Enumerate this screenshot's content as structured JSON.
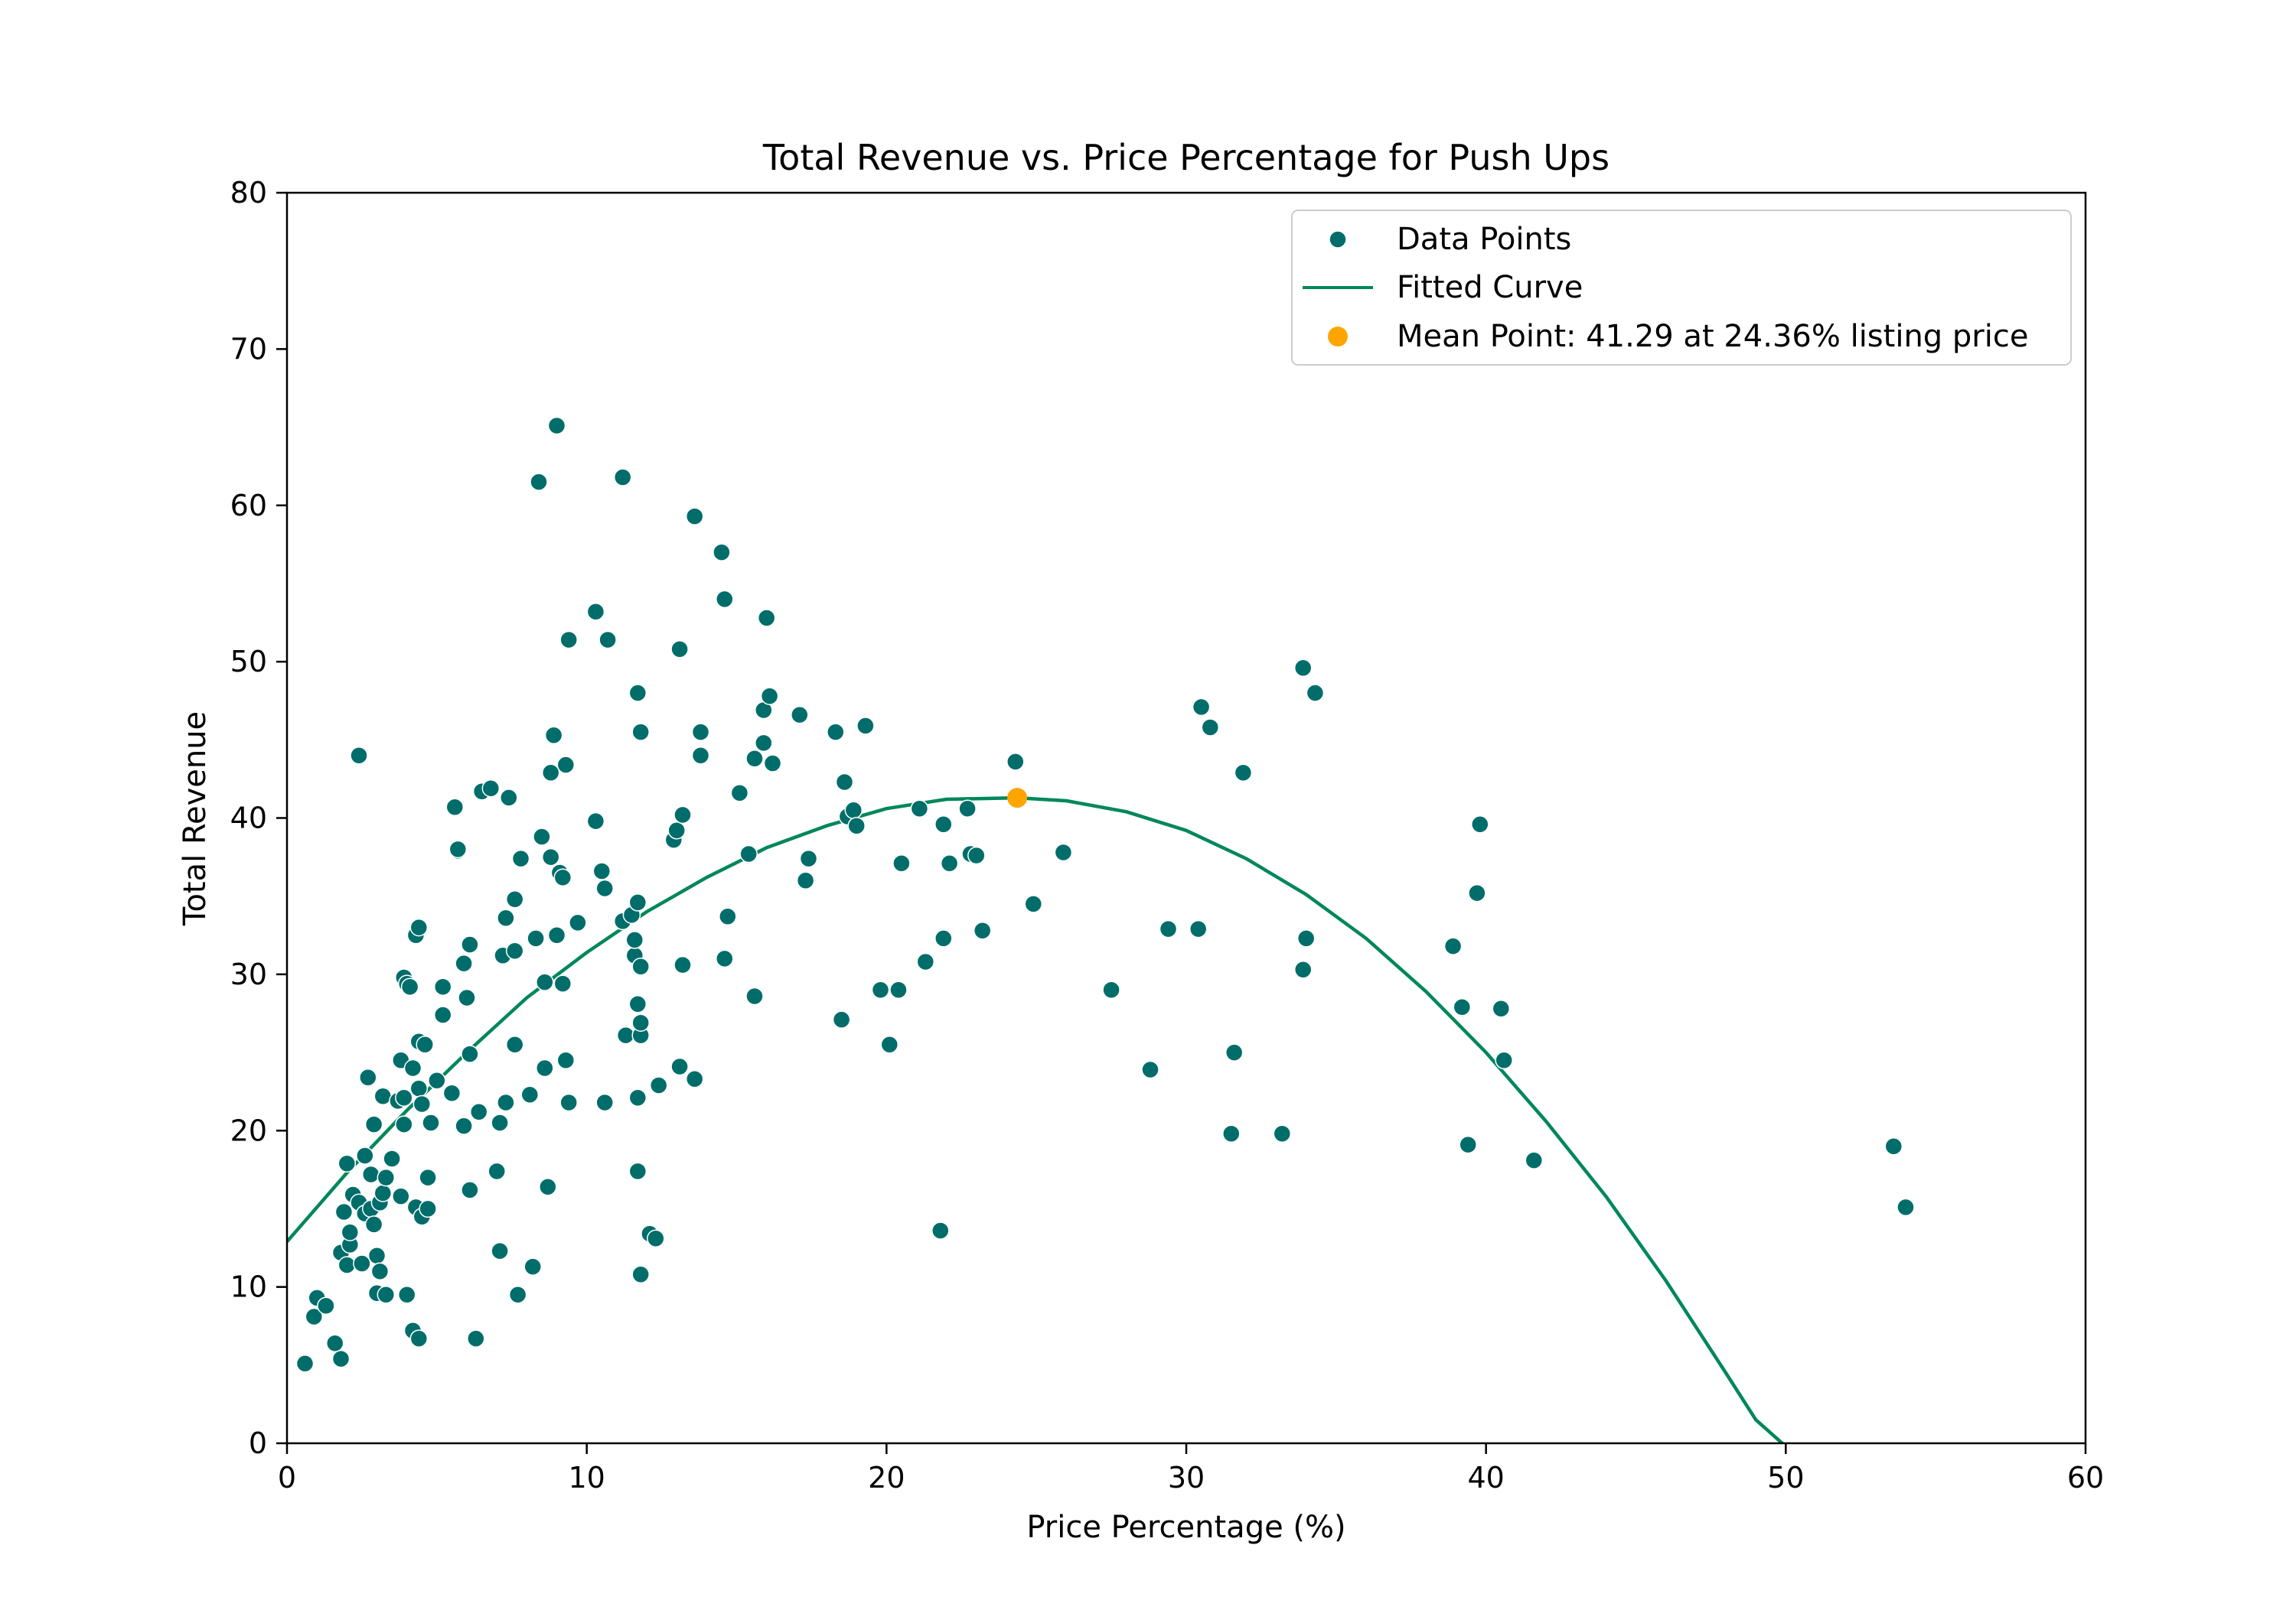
{
  "chart_data": {
    "type": "scatter",
    "title": "Total Revenue vs. Price Percentage for Push Ups",
    "xlabel": "Price Percentage (%)",
    "ylabel": "Total Revenue",
    "xlim": [
      0,
      60
    ],
    "ylim": [
      0,
      80
    ],
    "xticks": [
      0,
      10,
      20,
      30,
      40,
      50,
      60
    ],
    "yticks": [
      0,
      10,
      20,
      30,
      40,
      50,
      60,
      70,
      80
    ],
    "grid": false,
    "legend_position": "top-right",
    "colors": {
      "points": "#006d6a",
      "curve": "#00875a",
      "mean": "#ffa500",
      "frame": "#000000"
    },
    "series": [
      {
        "name": "Data Points",
        "kind": "scatter",
        "points": [
          [
            0.6,
            5.1
          ],
          [
            0.9,
            8.1
          ],
          [
            1.0,
            9.3
          ],
          [
            1.3,
            8.8
          ],
          [
            1.6,
            6.4
          ],
          [
            1.8,
            5.4
          ],
          [
            1.8,
            12.2
          ],
          [
            1.9,
            14.8
          ],
          [
            2.0,
            11.4
          ],
          [
            2.0,
            17.9
          ],
          [
            2.1,
            12.7
          ],
          [
            2.1,
            13.5
          ],
          [
            2.2,
            15.9
          ],
          [
            2.4,
            44.0
          ],
          [
            2.4,
            15.4
          ],
          [
            2.5,
            11.5
          ],
          [
            2.6,
            18.4
          ],
          [
            2.6,
            14.7
          ],
          [
            2.7,
            23.4
          ],
          [
            2.8,
            17.2
          ],
          [
            2.8,
            15.0
          ],
          [
            2.9,
            20.4
          ],
          [
            2.9,
            14.0
          ],
          [
            3.0,
            12.0
          ],
          [
            3.0,
            9.6
          ],
          [
            3.1,
            11.0
          ],
          [
            3.1,
            15.4
          ],
          [
            3.2,
            22.2
          ],
          [
            3.2,
            16.0
          ],
          [
            3.3,
            17.0
          ],
          [
            3.3,
            9.5
          ],
          [
            3.5,
            18.2
          ],
          [
            3.7,
            21.9
          ],
          [
            3.8,
            24.5
          ],
          [
            3.8,
            15.8
          ],
          [
            3.9,
            20.4
          ],
          [
            3.9,
            22.1
          ],
          [
            3.9,
            29.8
          ],
          [
            4.0,
            9.5
          ],
          [
            4.0,
            29.4
          ],
          [
            4.1,
            29.2
          ],
          [
            4.2,
            7.2
          ],
          [
            4.2,
            24.0
          ],
          [
            4.3,
            15.1
          ],
          [
            4.3,
            32.5
          ],
          [
            4.4,
            6.7
          ],
          [
            4.4,
            33.0
          ],
          [
            4.4,
            25.7
          ],
          [
            4.4,
            22.7
          ],
          [
            4.5,
            21.7
          ],
          [
            4.5,
            14.5
          ],
          [
            4.6,
            25.5
          ],
          [
            4.7,
            17.0
          ],
          [
            4.7,
            15.0
          ],
          [
            4.8,
            20.5
          ],
          [
            5.0,
            23.2
          ],
          [
            5.2,
            27.4
          ],
          [
            5.2,
            29.2
          ],
          [
            5.5,
            22.4
          ],
          [
            5.6,
            40.7
          ],
          [
            5.7,
            37.9
          ],
          [
            5.7,
            38.0
          ],
          [
            5.9,
            30.7
          ],
          [
            5.9,
            20.3
          ],
          [
            6.0,
            28.5
          ],
          [
            6.1,
            24.9
          ],
          [
            6.1,
            31.9
          ],
          [
            6.1,
            16.2
          ],
          [
            6.3,
            6.7
          ],
          [
            6.4,
            21.2
          ],
          [
            6.5,
            41.7
          ],
          [
            6.8,
            41.9
          ],
          [
            7.0,
            17.4
          ],
          [
            7.1,
            20.5
          ],
          [
            7.1,
            12.3
          ],
          [
            7.2,
            31.2
          ],
          [
            7.3,
            21.8
          ],
          [
            7.3,
            33.6
          ],
          [
            7.4,
            41.3
          ],
          [
            7.6,
            34.8
          ],
          [
            7.6,
            25.5
          ],
          [
            7.6,
            31.5
          ],
          [
            7.7,
            9.5
          ],
          [
            7.8,
            37.4
          ],
          [
            8.1,
            22.3
          ],
          [
            8.2,
            11.3
          ],
          [
            8.3,
            32.3
          ],
          [
            8.4,
            61.5
          ],
          [
            8.5,
            38.8
          ],
          [
            8.6,
            29.5
          ],
          [
            8.6,
            24.0
          ],
          [
            8.7,
            16.4
          ],
          [
            8.8,
            37.5
          ],
          [
            8.8,
            42.9
          ],
          [
            8.9,
            45.3
          ],
          [
            9.0,
            32.5
          ],
          [
            9.0,
            65.1
          ],
          [
            9.1,
            36.5
          ],
          [
            9.2,
            36.2
          ],
          [
            9.2,
            29.4
          ],
          [
            9.3,
            24.5
          ],
          [
            9.3,
            43.4
          ],
          [
            9.4,
            21.8
          ],
          [
            9.4,
            51.4
          ],
          [
            9.7,
            33.3
          ],
          [
            10.3,
            53.2
          ],
          [
            10.3,
            39.8
          ],
          [
            10.5,
            36.6
          ],
          [
            10.6,
            35.5
          ],
          [
            10.6,
            21.8
          ],
          [
            10.7,
            51.4
          ],
          [
            11.2,
            61.8
          ],
          [
            11.2,
            33.4
          ],
          [
            11.3,
            26.1
          ],
          [
            11.5,
            33.8
          ],
          [
            11.6,
            31.2
          ],
          [
            11.6,
            32.2
          ],
          [
            11.7,
            22.1
          ],
          [
            11.7,
            34.6
          ],
          [
            11.7,
            48.0
          ],
          [
            11.7,
            28.1
          ],
          [
            11.7,
            17.4
          ],
          [
            11.8,
            30.5
          ],
          [
            11.8,
            45.5
          ],
          [
            11.8,
            26.1
          ],
          [
            11.8,
            26.9
          ],
          [
            11.8,
            10.8
          ],
          [
            12.1,
            13.4
          ],
          [
            12.3,
            13.1
          ],
          [
            12.4,
            22.9
          ],
          [
            12.9,
            38.6
          ],
          [
            13.0,
            39.2
          ],
          [
            13.1,
            24.1
          ],
          [
            13.1,
            50.8
          ],
          [
            13.2,
            40.2
          ],
          [
            13.2,
            30.6
          ],
          [
            13.6,
            59.3
          ],
          [
            13.6,
            23.3
          ],
          [
            13.8,
            45.5
          ],
          [
            13.8,
            44.0
          ],
          [
            14.5,
            57.0
          ],
          [
            14.6,
            31.0
          ],
          [
            14.6,
            54.0
          ],
          [
            14.7,
            33.7
          ],
          [
            15.1,
            41.6
          ],
          [
            15.4,
            37.7
          ],
          [
            15.6,
            28.6
          ],
          [
            15.6,
            43.8
          ],
          [
            15.9,
            44.8
          ],
          [
            15.9,
            46.9
          ],
          [
            16.0,
            52.8
          ],
          [
            16.1,
            47.8
          ],
          [
            16.2,
            43.5
          ],
          [
            17.1,
            46.6
          ],
          [
            17.3,
            36.0
          ],
          [
            17.4,
            37.4
          ],
          [
            18.3,
            45.5
          ],
          [
            18.5,
            27.1
          ],
          [
            18.6,
            42.3
          ],
          [
            18.7,
            40.1
          ],
          [
            18.9,
            40.5
          ],
          [
            19.0,
            39.5
          ],
          [
            19.3,
            45.9
          ],
          [
            19.8,
            29.0
          ],
          [
            20.1,
            25.5
          ],
          [
            20.4,
            29.0
          ],
          [
            20.5,
            37.1
          ],
          [
            21.1,
            40.6
          ],
          [
            21.3,
            30.8
          ],
          [
            21.8,
            13.6
          ],
          [
            21.9,
            32.3
          ],
          [
            21.9,
            39.6
          ],
          [
            22.1,
            37.1
          ],
          [
            22.7,
            40.6
          ],
          [
            22.8,
            37.7
          ],
          [
            23.0,
            37.6
          ],
          [
            23.2,
            32.8
          ],
          [
            24.3,
            43.6
          ],
          [
            24.9,
            34.5
          ],
          [
            25.9,
            37.8
          ],
          [
            27.5,
            29.0
          ],
          [
            28.8,
            23.9
          ],
          [
            29.4,
            32.9
          ],
          [
            30.4,
            32.9
          ],
          [
            30.5,
            47.1
          ],
          [
            30.8,
            45.8
          ],
          [
            31.5,
            19.8
          ],
          [
            31.6,
            25.0
          ],
          [
            31.9,
            42.9
          ],
          [
            33.2,
            19.8
          ],
          [
            33.9,
            49.6
          ],
          [
            33.9,
            30.3
          ],
          [
            34.0,
            32.3
          ],
          [
            34.3,
            48.0
          ],
          [
            38.9,
            31.8
          ],
          [
            39.2,
            27.9
          ],
          [
            39.4,
            19.1
          ],
          [
            39.7,
            35.2
          ],
          [
            39.8,
            39.6
          ],
          [
            40.5,
            27.8
          ],
          [
            40.6,
            24.5
          ],
          [
            41.6,
            18.1
          ],
          [
            53.6,
            19.0
          ],
          [
            54.0,
            15.1
          ]
        ]
      },
      {
        "name": "Fitted Curve",
        "kind": "line",
        "points": [
          [
            0,
            12.9
          ],
          [
            2,
            17.3
          ],
          [
            4,
            21.3
          ],
          [
            6,
            25.0
          ],
          [
            8,
            28.5
          ],
          [
            10,
            31.4
          ],
          [
            12,
            34.0
          ],
          [
            14,
            36.2
          ],
          [
            16,
            38.1
          ],
          [
            18,
            39.5
          ],
          [
            20,
            40.6
          ],
          [
            22,
            41.2
          ],
          [
            24.36,
            41.29
          ],
          [
            26,
            41.1
          ],
          [
            28,
            40.4
          ],
          [
            30,
            39.2
          ],
          [
            32,
            37.4
          ],
          [
            34,
            35.1
          ],
          [
            36,
            32.3
          ],
          [
            38,
            28.9
          ],
          [
            40,
            25.0
          ],
          [
            42,
            20.6
          ],
          [
            44,
            15.8
          ],
          [
            46,
            10.4
          ],
          [
            48,
            4.5
          ],
          [
            49,
            1.5
          ],
          [
            50,
            -0.2
          ]
        ]
      },
      {
        "name": "Mean Point: 41.29 at 24.36% listing price",
        "kind": "point",
        "points": [
          [
            24.36,
            41.29
          ]
        ]
      }
    ]
  }
}
